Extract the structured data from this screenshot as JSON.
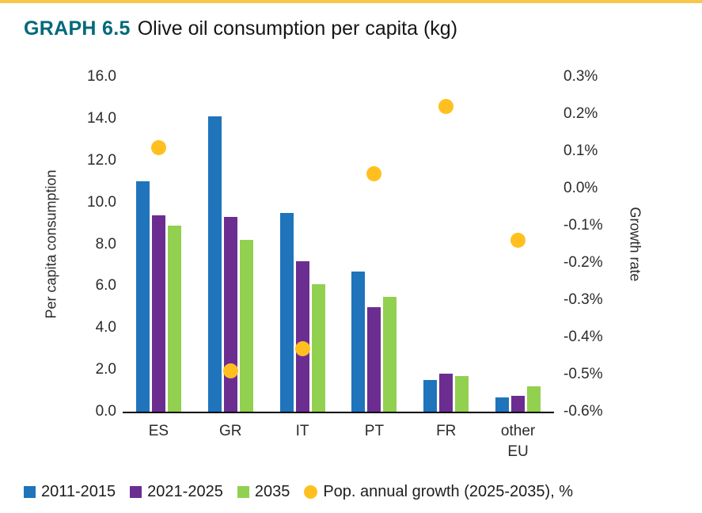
{
  "header": {
    "graph_label": "GRAPH 6.5",
    "title": "Olive oil consumption per capita (kg)",
    "accent_color": "#00697a",
    "accent_bar_color": "#f8c64b"
  },
  "chart_data": {
    "type": "bar",
    "title": "Olive oil consumption per capita (kg)",
    "categories": [
      "ES",
      "GR",
      "IT",
      "PT",
      "FR",
      "other EU"
    ],
    "series": [
      {
        "name": "2011-2015",
        "type": "bar",
        "color": "#1f74bc",
        "values": [
          11.0,
          14.1,
          9.5,
          6.7,
          1.5,
          0.7
        ]
      },
      {
        "name": "2021-2025",
        "type": "bar",
        "color": "#6c2d91",
        "values": [
          9.4,
          9.3,
          7.2,
          5.0,
          1.8,
          0.75
        ]
      },
      {
        "name": "2035",
        "type": "bar",
        "color": "#92d050",
        "values": [
          8.9,
          8.2,
          6.1,
          5.5,
          1.7,
          1.2
        ]
      },
      {
        "name": "Pop. annual growth (2025-2035), %",
        "type": "scatter",
        "color": "#ffc01f",
        "axis": "right",
        "values": [
          0.11,
          -0.49,
          -0.43,
          0.04,
          0.22,
          -0.14
        ]
      }
    ],
    "left_axis": {
      "label": "Per capita consumption",
      "min": 0,
      "max": 16,
      "ticks": [
        "16.0",
        "14.0",
        "12.0",
        "10.0",
        "8.0",
        "6.0",
        "4.0",
        "2.0",
        "0.0"
      ]
    },
    "right_axis": {
      "label": "Growth rate",
      "min": -0.6,
      "max": 0.3,
      "ticks": [
        "0.3%",
        "0.2%",
        "0.1%",
        "0.0%",
        "-0.1%",
        "-0.2%",
        "-0.3%",
        "-0.4%",
        "-0.5%",
        "-0.6%"
      ]
    },
    "grid": false,
    "legend_position": "bottom"
  }
}
